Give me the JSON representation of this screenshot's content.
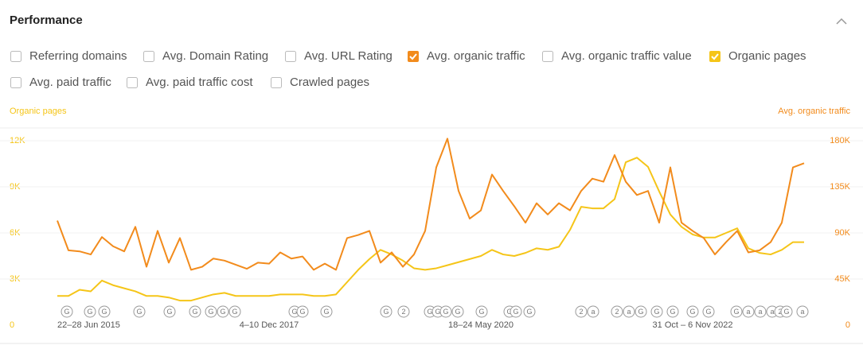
{
  "header": {
    "title": "Performance"
  },
  "filters": [
    {
      "label": "Referring domains",
      "checked": false
    },
    {
      "label": "Avg. Domain Rating",
      "checked": false
    },
    {
      "label": "Avg. URL Rating",
      "checked": false
    },
    {
      "label": "Avg. organic traffic",
      "checked": true,
      "color": "#f28b1c"
    },
    {
      "label": "Avg. organic traffic value",
      "checked": false
    },
    {
      "label": "Organic pages",
      "checked": true,
      "color": "#f5c518"
    },
    {
      "label": "Avg. paid traffic",
      "checked": false
    },
    {
      "label": "Avg. paid traffic cost",
      "checked": false
    },
    {
      "label": "Crawled pages",
      "checked": false
    }
  ],
  "chart_data": {
    "type": "line",
    "y_label": "Organic pages",
    "y2_label": "Avg. organic traffic",
    "categories": [
      "22–28 Jun 2015",
      null,
      null,
      null,
      null,
      null,
      null,
      null,
      null,
      null,
      null,
      null,
      null,
      null,
      null,
      null,
      null,
      null,
      null,
      "4–10 Dec 2017",
      null,
      null,
      null,
      null,
      null,
      null,
      null,
      null,
      null,
      null,
      null,
      null,
      null,
      null,
      null,
      null,
      null,
      null,
      "18–24 May 2020",
      null,
      null,
      null,
      null,
      null,
      null,
      null,
      null,
      null,
      null,
      null,
      null,
      null,
      null,
      null,
      null,
      null,
      null,
      "31 Oct – 6 Nov 2022",
      null,
      null,
      null,
      null,
      null,
      null,
      null,
      null,
      null,
      null
    ],
    "ylim": [
      0,
      12000
    ],
    "yticks": [
      0,
      {
        "value": 3000,
        "label": "3K"
      },
      {
        "value": 6000,
        "label": "6K"
      },
      {
        "value": 9000,
        "label": "9K"
      },
      {
        "value": 12000,
        "label": "12K"
      }
    ],
    "y2lim": [
      0,
      180000
    ],
    "y2ticks": [
      0,
      {
        "value": 45000,
        "label": "45K"
      },
      {
        "value": 90000,
        "label": "90K"
      },
      {
        "value": 135000,
        "label": "135K"
      },
      {
        "value": 180000,
        "label": "180K"
      }
    ],
    "grid": true,
    "series": [
      {
        "name": "Avg. organic traffic",
        "color": "#f28b1c",
        "axis": "y2",
        "values": [
          102000,
          73000,
          72000,
          69000,
          86000,
          77000,
          72000,
          96000,
          57000,
          92000,
          61000,
          85000,
          54000,
          57000,
          65000,
          63000,
          59000,
          55000,
          61000,
          60000,
          71000,
          65000,
          67000,
          54000,
          60000,
          54000,
          85000,
          88000,
          92000,
          61000,
          71000,
          57000,
          69000,
          92000,
          154000,
          182000,
          131000,
          104000,
          112000,
          147000,
          131000,
          116000,
          100000,
          119000,
          108000,
          119000,
          112000,
          131000,
          143000,
          140000,
          166000,
          140000,
          127000,
          131000,
          100000,
          154000,
          100000,
          92000,
          85000,
          69000,
          81000,
          92000,
          71000,
          73000,
          81000,
          100000,
          154000,
          158000
        ]
      },
      {
        "name": "Organic pages",
        "color": "#f5c518",
        "values": [
          1900,
          1900,
          2300,
          2200,
          2900,
          2600,
          2400,
          2200,
          1900,
          1900,
          1800,
          1600,
          1600,
          1800,
          2000,
          2100,
          1900,
          1900,
          1900,
          1900,
          2000,
          2000,
          2000,
          1900,
          1900,
          2000,
          2800,
          3600,
          4300,
          4900,
          4600,
          4200,
          3700,
          3600,
          3700,
          3900,
          4100,
          4300,
          4500,
          4900,
          4600,
          4500,
          4700,
          5000,
          4900,
          5100,
          6200,
          7700,
          7600,
          7600,
          8200,
          10600,
          10900,
          10300,
          8700,
          7200,
          6400,
          5900,
          5700,
          5700,
          6000,
          6300,
          5000,
          4700,
          4600,
          4900,
          5400,
          5400
        ]
      }
    ],
    "events": [
      "G",
      "G",
      "G",
      "G",
      "G",
      "G",
      "G",
      "G",
      "G",
      "G",
      "G",
      "G",
      "2",
      "G",
      "G",
      "G",
      "G",
      "G",
      "G",
      "G",
      "G",
      "G",
      "2",
      "a",
      "2",
      "a",
      "G",
      "G",
      "G",
      "G",
      "G",
      "G",
      "a",
      "a",
      "a",
      "2",
      "G",
      "a"
    ]
  }
}
